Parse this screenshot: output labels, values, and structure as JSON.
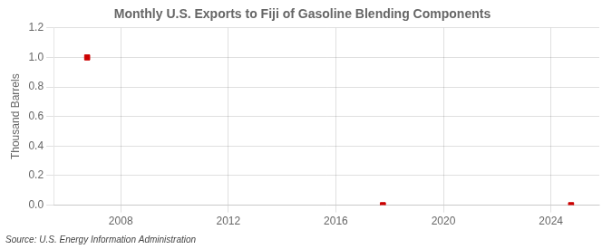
{
  "chart_data": {
    "type": "scatter",
    "title": "Monthly U.S. Exports to Fiji of Gasoline Blending Components",
    "y_label": "Thousand Barrels",
    "annotation": "Source: U.S. Energy Information Administration",
    "x": [
      2006.75,
      2017.75,
      2024.75
    ],
    "values": [
      1.0,
      0.0,
      0.0
    ],
    "color": "#cc0000",
    "marker": "square",
    "xlim": [
      2005.5,
      2025.8
    ],
    "ylim": [
      0.0,
      1.2
    ],
    "xticks": [
      2008,
      2012,
      2016,
      2020,
      2024
    ],
    "yticks": [
      {
        "value": 0,
        "label": "0.0"
      },
      0.2,
      0.4,
      0.6,
      0.8,
      {
        "value": 1,
        "label": "1.0"
      },
      1.2
    ],
    "grid": true
  }
}
